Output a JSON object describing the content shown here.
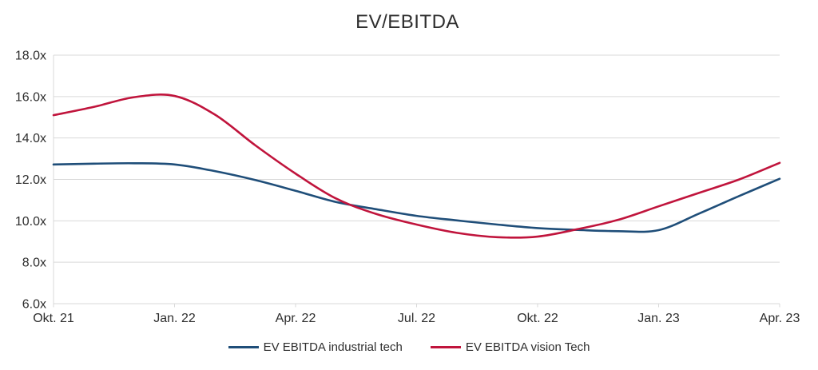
{
  "chart_data": {
    "type": "line",
    "title": "EV/EBITDA",
    "x_tick_labels": [
      "Okt. 21",
      "Jan. 22",
      "Apr. 22",
      "Jul. 22",
      "Okt. 22",
      "Jan. 23",
      "Apr. 23"
    ],
    "y_tick_labels": [
      "18.0x",
      "16.0x",
      "14.0x",
      "12.0x",
      "10.0x",
      "8.0x",
      "6.0x"
    ],
    "ylim": [
      6,
      18
    ],
    "y_step": 2,
    "grid": "horizontal-only",
    "legend_position": "bottom-center",
    "smoothed_lines": true,
    "axis_color": "#d9d9d9",
    "text_color": "#2e2e2e",
    "categories": [
      "Okt. 21",
      "Nov. 21",
      "Dez. 21",
      "Jan. 22",
      "Feb. 22",
      "Mär. 22",
      "Apr. 22",
      "Mai 22",
      "Jun. 22",
      "Jul. 22",
      "Aug. 22",
      "Sep. 22",
      "Okt. 22",
      "Nov. 22",
      "Dez. 22",
      "Jan. 23",
      "Feb. 23",
      "Mär. 23",
      "Apr. 23"
    ],
    "series": [
      {
        "name": "EV EBITDA industrial tech",
        "color": "#1f4e79",
        "values": [
          12.72,
          12.76,
          12.78,
          12.72,
          12.4,
          11.97,
          11.45,
          10.91,
          10.56,
          10.24,
          10.02,
          9.82,
          9.65,
          9.56,
          9.5,
          9.55,
          10.35,
          11.2,
          12.03
        ]
      },
      {
        "name": "EV EBITDA vision Tech",
        "color": "#c0143c",
        "values": [
          15.1,
          15.5,
          15.97,
          16.03,
          15.13,
          13.65,
          12.28,
          11.08,
          10.33,
          9.82,
          9.42,
          9.21,
          9.24,
          9.6,
          10.05,
          10.7,
          11.35,
          12.0,
          12.8
        ]
      }
    ]
  }
}
